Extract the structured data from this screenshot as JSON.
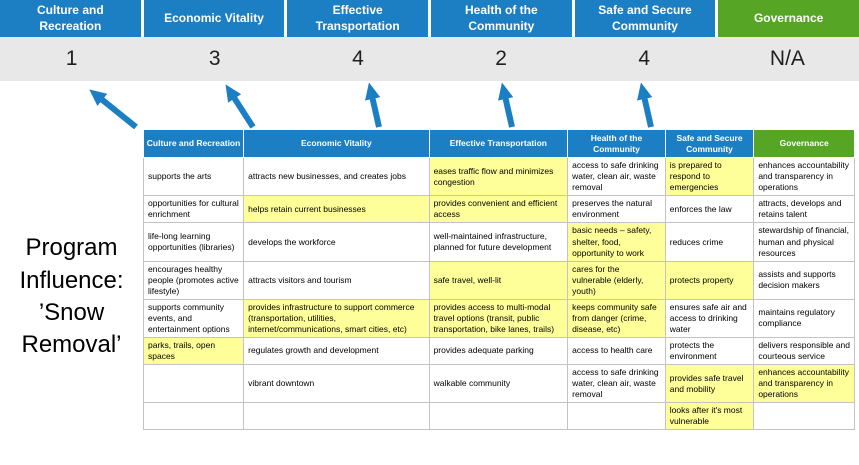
{
  "title": "Program Influence: ’Snow Removal’",
  "colors": {
    "blue": "#1C7EC3",
    "green": "#56A525",
    "highlight": "#FFFF99",
    "score_band": "#E8E8E8",
    "arrow": "#1C7EC3",
    "cell_border": "#C3C3C3"
  },
  "scoreboard": {
    "columns": [
      {
        "label": "Culture and Recreation",
        "score": "1",
        "theme": "blue"
      },
      {
        "label": "Economic Vitality",
        "score": "3",
        "theme": "blue"
      },
      {
        "label": "Effective Transportation",
        "score": "4",
        "theme": "blue"
      },
      {
        "label": "Health of the Community",
        "score": "2",
        "theme": "blue"
      },
      {
        "label": "Safe and Secure Community",
        "score": "4",
        "theme": "blue"
      },
      {
        "label": "Governance",
        "score": "N/A",
        "theme": "green"
      }
    ]
  },
  "matrix": {
    "headers": [
      {
        "label": "Culture and Recreation",
        "theme": "blue"
      },
      {
        "label": "Economic Vitality",
        "theme": "blue"
      },
      {
        "label": "Effective Transportation",
        "theme": "blue"
      },
      {
        "label": "Health of the Community",
        "theme": "blue"
      },
      {
        "label": "Safe and Secure Community",
        "theme": "blue"
      },
      {
        "label": "Governance",
        "theme": "green"
      }
    ],
    "rows": [
      [
        {
          "text": "supports the arts",
          "highlight": false
        },
        {
          "text": "attracts new businesses, and creates jobs",
          "highlight": false
        },
        {
          "text": "eases traffic flow and minimizes congestion",
          "highlight": true
        },
        {
          "text": "access to safe drinking water, clean air, waste removal",
          "highlight": false
        },
        {
          "text": "is prepared to respond to emergencies",
          "highlight": true
        },
        {
          "text": "enhances accountability and transparency in operations",
          "highlight": false
        }
      ],
      [
        {
          "text": "opportunities for cultural enrichment",
          "highlight": false
        },
        {
          "text": "helps retain current businesses",
          "highlight": true
        },
        {
          "text": "provides convenient and efficient access",
          "highlight": true
        },
        {
          "text": "preserves the natural environment",
          "highlight": false
        },
        {
          "text": "enforces the law",
          "highlight": false
        },
        {
          "text": "attracts, develops and retains talent",
          "highlight": false
        }
      ],
      [
        {
          "text": "life-long learning opportunities (libraries)",
          "highlight": false
        },
        {
          "text": "develops the workforce",
          "highlight": false
        },
        {
          "text": "well-maintained infrastructure, planned for future development",
          "highlight": false
        },
        {
          "text": "basic needs – safety, shelter, food, opportunity to work",
          "highlight": true
        },
        {
          "text": "reduces crime",
          "highlight": false
        },
        {
          "text": "stewardship of financial, human and physical resources",
          "highlight": false
        }
      ],
      [
        {
          "text": "encourages healthy people (promotes active lifestyle)",
          "highlight": false
        },
        {
          "text": "attracts visitors and tourism",
          "highlight": false
        },
        {
          "text": "safe travel, well-lit",
          "highlight": true
        },
        {
          "text": "cares for the vulnerable (elderly, youth)",
          "highlight": true
        },
        {
          "text": "protects property",
          "highlight": true
        },
        {
          "text": "assists and supports decision makers",
          "highlight": false
        }
      ],
      [
        {
          "text": "supports community events, and entertainment options",
          "highlight": false
        },
        {
          "text": "provides infrastructure to support commerce (transportation, utilities, internet/communications, smart cities, etc)",
          "highlight": true
        },
        {
          "text": "provides access to multi-modal travel options (transit, public transportation, bike lanes, trails)",
          "highlight": true
        },
        {
          "text": "keeps community safe from danger (crime, disease, etc)",
          "highlight": true
        },
        {
          "text": "ensures safe air and access to drinking water",
          "highlight": false
        },
        {
          "text": "maintains regulatory compliance",
          "highlight": false
        }
      ],
      [
        {
          "text": "parks, trails, open spaces",
          "highlight": true
        },
        {
          "text": "regulates growth and development",
          "highlight": false
        },
        {
          "text": "provides adequate parking",
          "highlight": false
        },
        {
          "text": "access to health care",
          "highlight": false
        },
        {
          "text": "protects the environment",
          "highlight": false
        },
        {
          "text": "delivers responsible and courteous service",
          "highlight": false
        }
      ],
      [
        {
          "text": "",
          "highlight": false
        },
        {
          "text": "vibrant downtown",
          "highlight": false
        },
        {
          "text": "walkable community",
          "highlight": false
        },
        {
          "text": "access to safe drinking water, clean air, waste removal",
          "highlight": false
        },
        {
          "text": "provides safe travel and mobility",
          "highlight": true
        },
        {
          "text": "enhances accountability and transparency in operations",
          "highlight": true
        }
      ],
      [
        {
          "text": "",
          "highlight": false
        },
        {
          "text": "",
          "highlight": false
        },
        {
          "text": "",
          "highlight": false
        },
        {
          "text": "",
          "highlight": false
        },
        {
          "text": "looks after it's most vulnerable",
          "highlight": true
        },
        {
          "text": "",
          "highlight": false
        }
      ]
    ]
  }
}
